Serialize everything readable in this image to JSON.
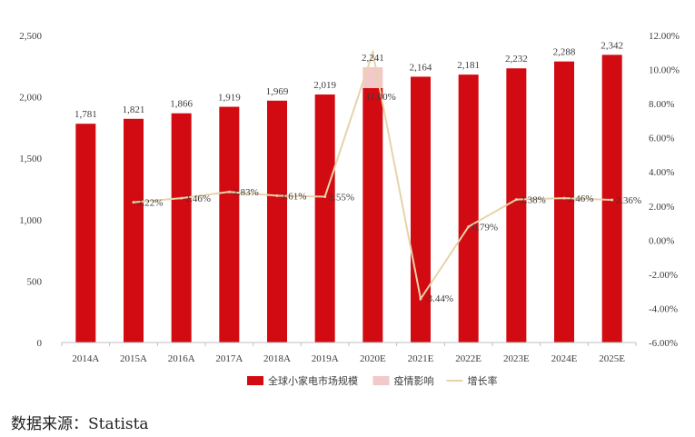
{
  "chart_data": {
    "type": "bar",
    "title": "",
    "categories": [
      "2014A",
      "2015A",
      "2016A",
      "2017A",
      "2018A",
      "2019A",
      "2020E",
      "2021E",
      "2022E",
      "2023E",
      "2024E",
      "2025E"
    ],
    "series": [
      {
        "name": "全球小家电市场规模",
        "kind": "bar",
        "color": "#d20a11",
        "values": [
          1781,
          1821,
          1866,
          1919,
          1969,
          2019,
          2071,
          2164,
          2181,
          2232,
          2288,
          2342
        ]
      },
      {
        "name": "疫情影响",
        "kind": "bar-stack",
        "color": "#f2c8c9",
        "values": [
          0,
          0,
          0,
          0,
          0,
          0,
          170,
          0,
          0,
          0,
          0,
          0
        ]
      },
      {
        "name": "增长率",
        "kind": "line",
        "axis": "right",
        "color": "#e8d3a9",
        "values": [
          null,
          2.22,
          2.46,
          2.83,
          2.61,
          2.55,
          11.0,
          -3.44,
          0.79,
          2.38,
          2.46,
          2.36
        ]
      }
    ],
    "bar_labels": [
      "1,781",
      "1,821",
      "1,866",
      "1,919",
      "1,969",
      "2,019",
      "2,241",
      "2,164",
      "2,181",
      "2,232",
      "2,288",
      "2,342"
    ],
    "line_labels": [
      "",
      "2.22%",
      "2.46%",
      "2.83%",
      "2.61%",
      "2.55%",
      "11.00%",
      "-3.44%",
      "0.79%",
      "2.38%",
      "2.46%",
      "2.36%"
    ],
    "y_left": {
      "min": 0,
      "max": 2500,
      "ticks": [
        0,
        500,
        1000,
        1500,
        2000,
        2500
      ],
      "tick_labels": [
        "0",
        "500",
        "1,000",
        "1,500",
        "2,000",
        "2,500"
      ]
    },
    "y_right": {
      "min": -6,
      "max": 12,
      "ticks": [
        -6,
        -4,
        -2,
        0,
        2,
        4,
        6,
        8,
        10,
        12
      ],
      "tick_labels": [
        "-6.00%",
        "-4.00%",
        "-2.00%",
        "0.00%",
        "2.00%",
        "4.00%",
        "6.00%",
        "8.00%",
        "10.00%",
        "12.00%"
      ]
    },
    "legend_position": "bottom"
  },
  "source_text": "数据来源：Statista"
}
